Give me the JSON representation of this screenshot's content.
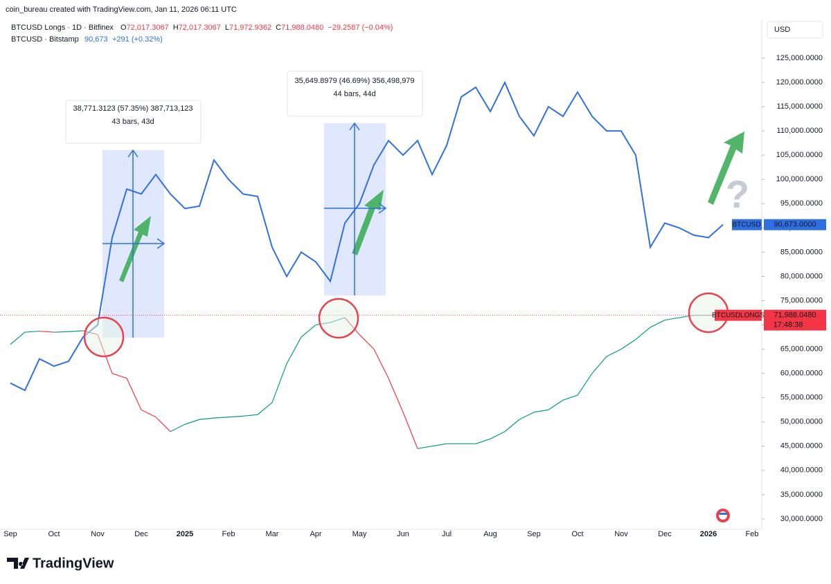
{
  "header": {
    "credit": "coin_bureau created with TradingView.com, Jan 11, 2026 06:11 UTC",
    "legend_1_title": "BTCUSD Longs · 1D · Bitfinex",
    "legend_1_ohlc": [
      {
        "key": "O",
        "value": "72,017.3067"
      },
      {
        "key": "H",
        "value": "72,017.3067"
      },
      {
        "key": "L",
        "value": "71,972.9362"
      },
      {
        "key": "C",
        "value": "71,988.0480"
      }
    ],
    "legend_1_change": "−29.2587 (−0.04%)",
    "legend_2_title": "BTCUSD · Bitstamp",
    "legend_2_price": "90,673",
    "legend_2_change": "+291 (+0.32%)",
    "currency": "USD"
  },
  "annotations": {
    "measure_1": {
      "line1": "38,771.3123 (57.35%) 387,713,123",
      "line2": "43 bars, 43d"
    },
    "measure_2": {
      "line1": "35,649.8979 (46.69%) 356,498,979",
      "line2": "44 bars, 44d"
    },
    "question": "?"
  },
  "price_labels": {
    "btcusd": "90,673.0000",
    "longs": "71,988.0480",
    "countdown": "17:48:38"
  },
  "footer": {
    "brand": "TradingView"
  },
  "chart_data": {
    "type": "line",
    "categories": [
      "Sep",
      null,
      null,
      "Oct",
      null,
      null,
      "Nov",
      null,
      null,
      "Dec",
      null,
      null,
      "2025",
      null,
      null,
      "Feb",
      null,
      null,
      "Mar",
      null,
      null,
      "Apr",
      null,
      null,
      "May",
      null,
      null,
      "Jun",
      null,
      null,
      "Jul",
      null,
      null,
      "Aug",
      null,
      null,
      "Sep",
      null,
      null,
      "Oct",
      null,
      null,
      "Nov",
      null,
      null,
      "Dec",
      null,
      null,
      "2026",
      null,
      null,
      "Feb"
    ],
    "series": [
      {
        "name": "BTCUSD",
        "color": "#2f6fe0",
        "values": [
          58000,
          56500,
          63000,
          61500,
          62500,
          67500,
          70000,
          88000,
          98000,
          97000,
          101000,
          97000,
          94000,
          94500,
          104000,
          100000,
          97000,
          96500,
          86000,
          80000,
          85000,
          83000,
          79000,
          91000,
          95000,
          103000,
          108000,
          105000,
          108000,
          101000,
          107000,
          117000,
          119000,
          114000,
          120000,
          113000,
          109000,
          115000,
          113000,
          118000,
          113000,
          110000,
          110000,
          105000,
          86000,
          91000,
          90000,
          88500,
          88000,
          90673,
          null,
          null
        ]
      },
      {
        "name": "BTCUSDLONGS",
        "color": "#089981",
        "down_color": "#f23645",
        "values": [
          66000,
          68500,
          68700,
          68500,
          68600,
          68800,
          68000,
          60000,
          59000,
          52500,
          51000,
          48000,
          49500,
          50500,
          50800,
          51000,
          51200,
          51500,
          54000,
          62000,
          67500,
          70000,
          70500,
          71500,
          68000,
          65000,
          59000,
          52000,
          44500,
          45000,
          45500,
          45500,
          45500,
          46500,
          48000,
          50500,
          52000,
          52500,
          54500,
          55500,
          60000,
          63500,
          65000,
          67000,
          69500,
          71000,
          71500,
          72000,
          72000,
          71988.048,
          null,
          null
        ]
      }
    ],
    "ylim": [
      27850,
      133000
    ],
    "yticks": [
      {
        "value": 30000,
        "label": "30,000.0000"
      },
      {
        "value": 35000,
        "label": "35,000.0000"
      },
      {
        "value": 40000,
        "label": "40,000.0000"
      },
      {
        "value": 45000,
        "label": "45,000.0000"
      },
      {
        "value": 50000,
        "label": "50,000.0000"
      },
      {
        "value": 55000,
        "label": "55,000.0000"
      },
      {
        "value": 60000,
        "label": "60,000.0000"
      },
      {
        "value": 65000,
        "label": "65,000.0000"
      },
      {
        "value": 70000,
        "label": "70,000.0000"
      },
      {
        "value": 75000,
        "label": "75,000.0000"
      },
      {
        "value": 80000,
        "label": "80,000.0000"
      },
      {
        "value": 85000,
        "label": "85,000.0000"
      },
      {
        "value": 90000,
        "label": "90,000.0000"
      },
      {
        "value": 95000,
        "label": "95,000.0000"
      },
      {
        "value": 100000,
        "label": "100,000.0000"
      },
      {
        "value": 105000,
        "label": "105,000.0000"
      },
      {
        "value": 110000,
        "label": "110,000.0000"
      },
      {
        "value": 115000,
        "label": "115,000.0000"
      },
      {
        "value": 120000,
        "label": "120,000.0000"
      },
      {
        "value": 125000,
        "label": "125,000.0000"
      }
    ],
    "grid": false
  }
}
